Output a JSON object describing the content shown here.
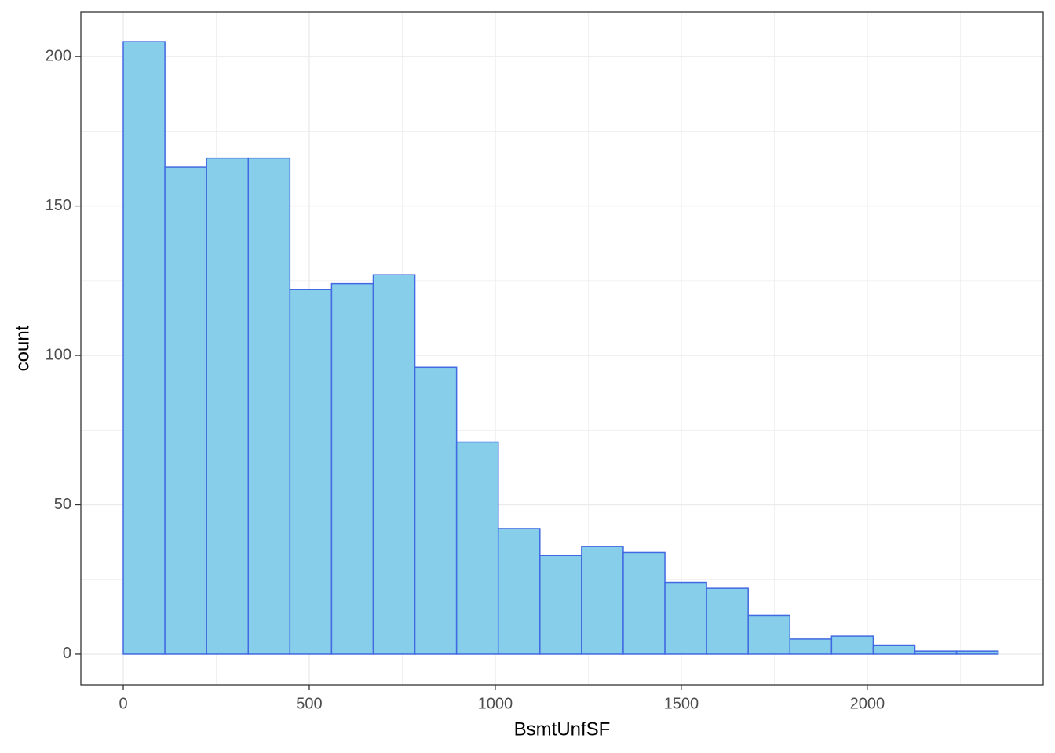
{
  "chart_data": {
    "type": "histogram",
    "x_label": "BsmtUnfSF",
    "y_label": "count",
    "bins": [
      0,
      112,
      224,
      336,
      448,
      560,
      672,
      784,
      896,
      1008,
      1120,
      1232,
      1344,
      1456,
      1568,
      1680,
      1792,
      1904,
      2016,
      2128,
      2240,
      2352
    ],
    "values": [
      205,
      163,
      166,
      166,
      122,
      124,
      127,
      96,
      71,
      42,
      33,
      36,
      34,
      24,
      22,
      13,
      5,
      6,
      3,
      1,
      1
    ],
    "color": "#87ceeb",
    "edge_color": "#4169e1",
    "xlim": [
      -114,
      2473
    ],
    "ylim": [
      -10.25,
      215
    ],
    "xticks": [
      0,
      500,
      1000,
      1500,
      2000
    ],
    "yticks": [
      0,
      50,
      100,
      150,
      200
    ],
    "x_minor_ticks": [
      250,
      750,
      1250,
      1750,
      2250
    ],
    "y_minor_ticks": [
      25,
      75,
      125,
      175
    ],
    "grid": true
  }
}
